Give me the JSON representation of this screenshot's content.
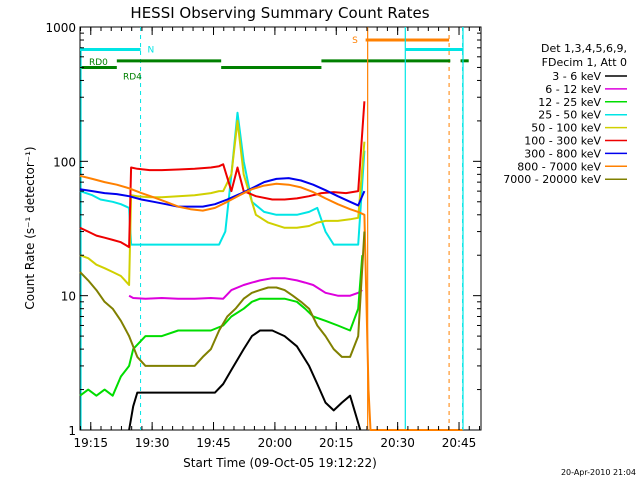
{
  "chart_data": {
    "type": "line",
    "title": "HESSI Observing Summary Count Rates",
    "xlabel": "Start Time (09-Oct-05 19:12:22)",
    "ylabel": "Count Rate (s⁻¹ detector⁻¹)",
    "y_scale": "log",
    "ylim": [
      1,
      1000
    ],
    "y_ticks": [
      1,
      10,
      100,
      1000
    ],
    "y_tick_labels": [
      "1",
      "10",
      "100",
      "1000"
    ],
    "x_unit": "minutes after 19:12:22",
    "xlim": [
      0,
      98
    ],
    "x_ticks": [
      2.63,
      17.63,
      32.63,
      47.63,
      62.63,
      77.63,
      92.63
    ],
    "x_tick_labels": [
      "19:15",
      "19:30",
      "19:45",
      "20:00",
      "20:15",
      "20:30",
      "20:45"
    ],
    "legend_header": [
      "Det 1,3,4,5,6,9,",
      "FDecim 1, Att 0"
    ],
    "legend_position": "right",
    "series": [
      {
        "name": "3 - 6 keV",
        "color": "#000000",
        "x": [
          12,
          13,
          14,
          18,
          21,
          24,
          27,
          30,
          33,
          35,
          37,
          40,
          42,
          44,
          47,
          50,
          53,
          56,
          58,
          60,
          62,
          64,
          66,
          68.5
        ],
        "y": [
          1,
          1.5,
          1.9,
          1.9,
          1.9,
          1.9,
          1.9,
          1.9,
          1.9,
          2.2,
          2.8,
          4,
          5,
          5.5,
          5.5,
          5,
          4.2,
          3,
          2.2,
          1.6,
          1.4,
          1.6,
          1.8,
          1
        ]
      },
      {
        "name": "6 - 12 keV",
        "color": "#dd00dd",
        "x": [
          12,
          13,
          16,
          20,
          24,
          28,
          32,
          35,
          37,
          40,
          42,
          44,
          47,
          50,
          53,
          55,
          57,
          60,
          63,
          66,
          68,
          69
        ],
        "y": [
          10,
          9.6,
          9.5,
          9.6,
          9.5,
          9.5,
          9.6,
          9.5,
          11,
          12,
          12.5,
          13,
          13.5,
          13.5,
          13,
          12.5,
          12,
          10.5,
          10,
          10,
          10.5,
          11
        ]
      },
      {
        "name": "12 - 25 keV",
        "color": "#00dd00",
        "x": [
          0,
          2,
          4,
          6,
          8,
          10,
          12,
          13,
          16,
          20,
          24,
          28,
          32,
          35,
          37,
          40,
          42,
          44,
          47,
          50,
          53,
          55,
          57,
          60,
          63,
          66,
          68,
          69
        ],
        "y": [
          1.8,
          2.0,
          1.8,
          2.0,
          1.8,
          2.5,
          3,
          4,
          5,
          5,
          5.5,
          5.5,
          5.5,
          6,
          7,
          8,
          9,
          9.5,
          9.5,
          9.5,
          9,
          8,
          7,
          6.5,
          6,
          5.5,
          8,
          20
        ]
      },
      {
        "name": "25 - 50 keV",
        "color": "#00e5e5",
        "x": [
          0,
          3,
          5,
          8,
          10,
          12,
          12.5,
          15,
          20,
          25,
          30,
          34,
          35.5,
          37,
          38.5,
          40,
          42,
          45,
          48,
          50,
          53,
          56,
          58,
          60,
          62,
          65,
          68,
          69.5
        ],
        "y": [
          60,
          56,
          52,
          50,
          48,
          45,
          24,
          24,
          24,
          24,
          24,
          24,
          30,
          80,
          230,
          100,
          50,
          42,
          40,
          40,
          40,
          42,
          45,
          30,
          24,
          24,
          24,
          120
        ]
      },
      {
        "name": "50 - 100 keV",
        "color": "#d0d000",
        "x": [
          0,
          2,
          4,
          6,
          8,
          10,
          11,
          12,
          12.5,
          14,
          17,
          20,
          24,
          28,
          32,
          34,
          35,
          37,
          38.5,
          40,
          43,
          46,
          50,
          53,
          56,
          58,
          60,
          63,
          66,
          68,
          69.5
        ],
        "y": [
          20,
          19,
          17,
          16,
          15,
          14,
          13,
          12,
          56,
          55,
          54,
          54,
          55,
          56,
          58,
          60,
          60,
          80,
          200,
          80,
          40,
          35,
          32,
          32,
          33,
          35,
          36,
          36,
          37,
          38,
          140
        ]
      },
      {
        "name": "100 - 300 keV",
        "color": "#ee0000",
        "x": [
          0,
          2,
          4,
          6,
          8,
          10,
          11,
          12,
          12.5,
          14,
          17,
          20,
          24,
          28,
          32,
          34,
          35,
          37,
          38.5,
          40,
          43,
          47,
          50,
          53,
          56,
          59,
          62,
          65,
          68,
          69.5
        ],
        "y": [
          32,
          30,
          28,
          27,
          26,
          25,
          24,
          23,
          90,
          88,
          86,
          86,
          87,
          88,
          90,
          92,
          95,
          60,
          90,
          60,
          55,
          52,
          52,
          53,
          55,
          58,
          59,
          58,
          60,
          280
        ]
      },
      {
        "name": "300 - 800 keV",
        "color": "#0000ee",
        "x": [
          0,
          3,
          6,
          9,
          12,
          15,
          18,
          21,
          24,
          27,
          30,
          33,
          36,
          39,
          42,
          45,
          48,
          51,
          54,
          57,
          60,
          63,
          66,
          68,
          69.5
        ],
        "y": [
          62,
          60,
          58,
          57,
          55,
          52,
          50,
          48,
          46,
          46,
          46,
          48,
          52,
          57,
          63,
          70,
          74,
          75,
          72,
          67,
          61,
          55,
          50,
          47,
          60
        ]
      },
      {
        "name": "800 - 7000 keV",
        "color": "#ff8000",
        "x": [
          0,
          3,
          6,
          9,
          12,
          15,
          18,
          21,
          24,
          27,
          30,
          33,
          36,
          39,
          42,
          45,
          48,
          51,
          54,
          57,
          60,
          63,
          66,
          68,
          69.5,
          70.5,
          71,
          72,
          74,
          77,
          80,
          83,
          86,
          89,
          92,
          93,
          93.5
        ],
        "y": [
          78,
          74,
          70,
          67,
          63,
          58,
          54,
          50,
          46,
          44,
          43,
          45,
          50,
          56,
          62,
          66,
          68,
          67,
          64,
          59,
          53,
          48,
          44,
          42,
          40,
          2,
          1,
          1,
          1,
          1,
          1,
          1,
          1,
          1,
          1,
          1,
          1
        ]
      },
      {
        "name": "7000 - 20000 keV",
        "color": "#808000",
        "x": [
          0,
          2,
          4,
          6,
          8,
          10,
          12,
          14,
          16,
          18,
          20,
          22,
          24,
          26,
          28,
          30,
          32,
          34,
          36,
          38,
          40,
          42,
          44,
          46,
          48,
          50,
          52,
          54,
          56,
          58,
          60,
          62,
          64,
          66,
          68,
          69.5
        ],
        "y": [
          15,
          13,
          11,
          9,
          8,
          6.5,
          5,
          3.5,
          3,
          3,
          3,
          3,
          3,
          3,
          3,
          3.5,
          4,
          5.5,
          7,
          8,
          9.5,
          10.5,
          11,
          11.5,
          11.5,
          11,
          10,
          9,
          8,
          6,
          5,
          4,
          3.5,
          3.5,
          5,
          30
        ]
      }
    ],
    "annotations": [
      {
        "text": "RD0",
        "color": "#008000"
      },
      {
        "text": "RD4",
        "color": "#008000"
      },
      {
        "text": "N",
        "color": "#00e5e5"
      },
      {
        "text": "S",
        "color": "#ff8000"
      }
    ],
    "state_bars": [
      {
        "name": "night",
        "color": "#00e5e5",
        "level": 680,
        "ranges": [
          [
            0,
            14.8
          ],
          [
            79.5,
            93.5
          ]
        ],
        "dashed_lines": [
          14.8,
          93.5
        ]
      },
      {
        "name": "saa",
        "color": "#ff8000",
        "level": 800,
        "ranges": [
          [
            69.8,
            90.2
          ]
        ],
        "dashed_lines": [
          90.2
        ]
      },
      {
        "name": "rd-decim",
        "color": "#008000",
        "level_a": 500,
        "level_b": 560,
        "ranges_a": [
          [
            0,
            9
          ],
          [
            34.5,
            59
          ]
        ],
        "ranges_b": [
          [
            9,
            34.5
          ],
          [
            59,
            90.5
          ],
          [
            93,
            95
          ]
        ]
      }
    ],
    "solid_vertical_lines": [
      {
        "x": 70.3,
        "color": "#ff8000"
      },
      {
        "x": 79.5,
        "color": "#00e5e5"
      },
      {
        "x": 93.6,
        "color": "#00e5e5"
      }
    ],
    "grid": false
  },
  "footer_date": "20-Apr-2010 21:04"
}
